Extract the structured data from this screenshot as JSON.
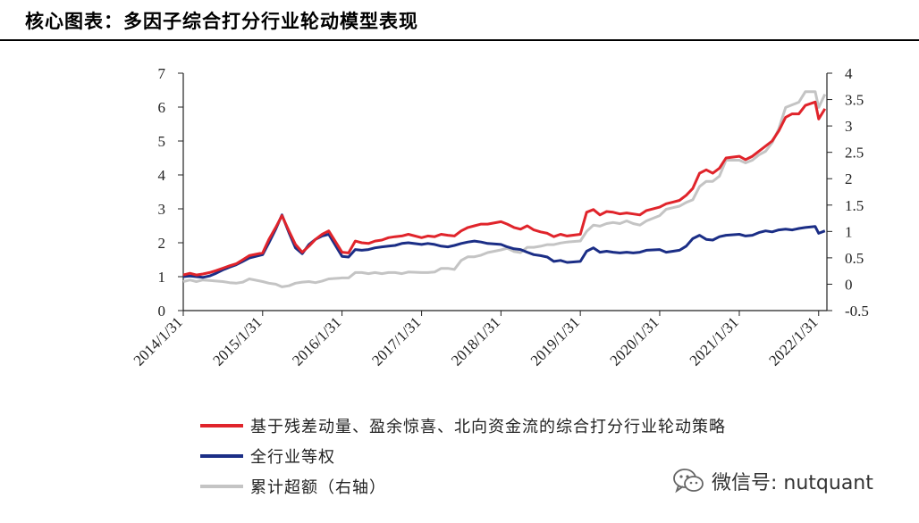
{
  "page": {
    "title": "核心图表：多因子综合打分行业轮动模型表现",
    "watermark_text": "微信号: nutquant",
    "watermark_icon": "wechat-icon"
  },
  "colors": {
    "strategy": "#E0242B",
    "equal_weight": "#1B2E86",
    "excess": "#C4C4C4"
  },
  "chart_data": {
    "type": "line",
    "title": "",
    "xlabel": "",
    "ylabel": "",
    "x_ticks": [
      "2014/1/31",
      "2015/1/31",
      "2016/1/31",
      "2017/1/31",
      "2018/1/31",
      "2019/1/31",
      "2020/1/31",
      "2021/1/31",
      "2022/1/31"
    ],
    "y_left": {
      "ticks": [
        "0",
        "1",
        "2",
        "3",
        "4",
        "5",
        "6",
        "7"
      ],
      "ylim": [
        0,
        7
      ]
    },
    "y_right": {
      "ticks": [
        "-0.5",
        "0",
        "0.5",
        "1",
        "1.5",
        "2",
        "2.5",
        "3",
        "3.5",
        "4"
      ],
      "ylim": [
        -0.5,
        4
      ]
    },
    "legend_position": "bottom",
    "grid": false,
    "series": [
      {
        "name": "基于残差动量、盈余惊喜、北向资金流的综合打分行业轮动策略",
        "axis": "left",
        "points": [
          [
            "2014-01-31",
            1.05
          ],
          [
            "2014-03-03",
            1.1
          ],
          [
            "2014-04-01",
            1.05
          ],
          [
            "2014-05-01",
            1.08
          ],
          [
            "2014-06-01",
            1.12
          ],
          [
            "2014-07-01",
            1.18
          ],
          [
            "2014-08-01",
            1.25
          ],
          [
            "2014-09-01",
            1.32
          ],
          [
            "2014-10-01",
            1.38
          ],
          [
            "2014-11-01",
            1.5
          ],
          [
            "2014-12-01",
            1.62
          ],
          [
            "2015-01-31",
            1.7
          ],
          [
            "2015-03-01",
            2.1
          ],
          [
            "2015-04-01",
            2.45
          ],
          [
            "2015-04-30",
            2.8
          ],
          [
            "2015-06-01",
            2.35
          ],
          [
            "2015-07-01",
            1.95
          ],
          [
            "2015-08-01",
            1.72
          ],
          [
            "2015-09-01",
            1.9
          ],
          [
            "2015-10-01",
            2.1
          ],
          [
            "2015-11-01",
            2.25
          ],
          [
            "2015-12-01",
            2.35
          ],
          [
            "2016-01-31",
            1.72
          ],
          [
            "2016-03-01",
            1.7
          ],
          [
            "2016-04-01",
            2.05
          ],
          [
            "2016-05-01",
            2.0
          ],
          [
            "2016-06-01",
            1.98
          ],
          [
            "2016-07-01",
            2.05
          ],
          [
            "2016-08-01",
            2.08
          ],
          [
            "2016-09-01",
            2.15
          ],
          [
            "2016-10-01",
            2.18
          ],
          [
            "2016-11-01",
            2.2
          ],
          [
            "2016-12-01",
            2.25
          ],
          [
            "2017-01-31",
            2.15
          ],
          [
            "2017-03-01",
            2.2
          ],
          [
            "2017-04-01",
            2.18
          ],
          [
            "2017-05-01",
            2.25
          ],
          [
            "2017-06-01",
            2.22
          ],
          [
            "2017-07-01",
            2.2
          ],
          [
            "2017-08-01",
            2.35
          ],
          [
            "2017-09-01",
            2.45
          ],
          [
            "2017-10-01",
            2.5
          ],
          [
            "2017-11-01",
            2.55
          ],
          [
            "2017-12-01",
            2.55
          ],
          [
            "2018-01-31",
            2.62
          ],
          [
            "2018-03-01",
            2.55
          ],
          [
            "2018-04-01",
            2.45
          ],
          [
            "2018-05-01",
            2.4
          ],
          [
            "2018-06-01",
            2.5
          ],
          [
            "2018-07-01",
            2.38
          ],
          [
            "2018-08-01",
            2.32
          ],
          [
            "2018-09-01",
            2.28
          ],
          [
            "2018-10-01",
            2.18
          ],
          [
            "2018-11-01",
            2.25
          ],
          [
            "2018-12-01",
            2.2
          ],
          [
            "2019-01-31",
            2.25
          ],
          [
            "2019-03-01",
            2.9
          ],
          [
            "2019-04-01",
            2.98
          ],
          [
            "2019-05-01",
            2.82
          ],
          [
            "2019-06-01",
            2.92
          ],
          [
            "2019-07-01",
            2.9
          ],
          [
            "2019-08-01",
            2.85
          ],
          [
            "2019-09-01",
            2.88
          ],
          [
            "2019-10-01",
            2.85
          ],
          [
            "2019-11-01",
            2.82
          ],
          [
            "2019-12-01",
            2.95
          ],
          [
            "2020-01-31",
            3.05
          ],
          [
            "2020-03-01",
            3.15
          ],
          [
            "2020-04-01",
            3.2
          ],
          [
            "2020-05-01",
            3.25
          ],
          [
            "2020-06-01",
            3.4
          ],
          [
            "2020-07-01",
            3.6
          ],
          [
            "2020-08-01",
            4.05
          ],
          [
            "2020-09-01",
            4.15
          ],
          [
            "2020-10-01",
            4.05
          ],
          [
            "2020-11-01",
            4.2
          ],
          [
            "2020-12-01",
            4.5
          ],
          [
            "2021-01-31",
            4.55
          ],
          [
            "2021-03-01",
            4.45
          ],
          [
            "2021-04-01",
            4.55
          ],
          [
            "2021-05-01",
            4.7
          ],
          [
            "2021-06-01",
            4.85
          ],
          [
            "2021-07-01",
            5.0
          ],
          [
            "2021-08-01",
            5.3
          ],
          [
            "2021-09-01",
            5.7
          ],
          [
            "2021-10-01",
            5.8
          ],
          [
            "2021-11-01",
            5.8
          ],
          [
            "2021-12-01",
            6.05
          ],
          [
            "2022-01-15",
            6.15
          ],
          [
            "2022-01-31",
            5.65
          ],
          [
            "2022-03-01",
            5.95
          ]
        ]
      },
      {
        "name": "全行业等权",
        "axis": "left",
        "points": [
          [
            "2014-01-31",
            1.0
          ],
          [
            "2014-03-03",
            1.02
          ],
          [
            "2014-04-01",
            1.0
          ],
          [
            "2014-05-01",
            0.98
          ],
          [
            "2014-06-01",
            1.02
          ],
          [
            "2014-07-01",
            1.1
          ],
          [
            "2014-08-01",
            1.2
          ],
          [
            "2014-09-01",
            1.28
          ],
          [
            "2014-10-01",
            1.35
          ],
          [
            "2014-11-01",
            1.45
          ],
          [
            "2014-12-01",
            1.55
          ],
          [
            "2015-01-31",
            1.65
          ],
          [
            "2015-03-01",
            2.0
          ],
          [
            "2015-04-01",
            2.4
          ],
          [
            "2015-04-30",
            2.82
          ],
          [
            "2015-06-01",
            2.3
          ],
          [
            "2015-07-01",
            1.85
          ],
          [
            "2015-08-01",
            1.68
          ],
          [
            "2015-09-01",
            1.95
          ],
          [
            "2015-10-01",
            2.1
          ],
          [
            "2015-11-01",
            2.2
          ],
          [
            "2015-12-01",
            2.25
          ],
          [
            "2016-01-31",
            1.6
          ],
          [
            "2016-03-01",
            1.58
          ],
          [
            "2016-04-01",
            1.8
          ],
          [
            "2016-05-01",
            1.78
          ],
          [
            "2016-06-01",
            1.8
          ],
          [
            "2016-07-01",
            1.85
          ],
          [
            "2016-08-01",
            1.88
          ],
          [
            "2016-09-01",
            1.9
          ],
          [
            "2016-10-01",
            1.92
          ],
          [
            "2016-11-01",
            1.98
          ],
          [
            "2016-12-01",
            2.0
          ],
          [
            "2017-01-31",
            1.95
          ],
          [
            "2017-03-01",
            1.98
          ],
          [
            "2017-04-01",
            1.95
          ],
          [
            "2017-05-01",
            1.9
          ],
          [
            "2017-06-01",
            1.88
          ],
          [
            "2017-07-01",
            1.92
          ],
          [
            "2017-08-01",
            1.98
          ],
          [
            "2017-09-01",
            2.02
          ],
          [
            "2017-10-01",
            2.05
          ],
          [
            "2017-11-01",
            2.02
          ],
          [
            "2017-12-01",
            1.98
          ],
          [
            "2018-01-31",
            1.95
          ],
          [
            "2018-03-01",
            1.88
          ],
          [
            "2018-04-01",
            1.82
          ],
          [
            "2018-05-01",
            1.8
          ],
          [
            "2018-06-01",
            1.72
          ],
          [
            "2018-07-01",
            1.65
          ],
          [
            "2018-08-01",
            1.62
          ],
          [
            "2018-09-01",
            1.58
          ],
          [
            "2018-10-01",
            1.45
          ],
          [
            "2018-11-01",
            1.48
          ],
          [
            "2018-12-01",
            1.42
          ],
          [
            "2019-01-31",
            1.45
          ],
          [
            "2019-03-01",
            1.75
          ],
          [
            "2019-04-01",
            1.85
          ],
          [
            "2019-05-01",
            1.72
          ],
          [
            "2019-06-01",
            1.75
          ],
          [
            "2019-07-01",
            1.72
          ],
          [
            "2019-08-01",
            1.7
          ],
          [
            "2019-09-01",
            1.72
          ],
          [
            "2019-10-01",
            1.7
          ],
          [
            "2019-11-01",
            1.72
          ],
          [
            "2019-12-01",
            1.78
          ],
          [
            "2020-01-31",
            1.8
          ],
          [
            "2020-03-01",
            1.72
          ],
          [
            "2020-04-01",
            1.75
          ],
          [
            "2020-05-01",
            1.78
          ],
          [
            "2020-06-01",
            1.9
          ],
          [
            "2020-07-01",
            2.12
          ],
          [
            "2020-08-01",
            2.22
          ],
          [
            "2020-09-01",
            2.1
          ],
          [
            "2020-10-01",
            2.08
          ],
          [
            "2020-11-01",
            2.18
          ],
          [
            "2020-12-01",
            2.22
          ],
          [
            "2021-01-31",
            2.25
          ],
          [
            "2021-03-01",
            2.2
          ],
          [
            "2021-04-01",
            2.22
          ],
          [
            "2021-05-01",
            2.3
          ],
          [
            "2021-06-01",
            2.35
          ],
          [
            "2021-07-01",
            2.32
          ],
          [
            "2021-08-01",
            2.38
          ],
          [
            "2021-09-01",
            2.4
          ],
          [
            "2021-10-01",
            2.38
          ],
          [
            "2021-11-01",
            2.42
          ],
          [
            "2021-12-01",
            2.45
          ],
          [
            "2022-01-15",
            2.48
          ],
          [
            "2022-01-31",
            2.28
          ],
          [
            "2022-03-01",
            2.35
          ]
        ]
      },
      {
        "name": "累计超额（右轴）",
        "axis": "right",
        "points": [
          [
            "2014-01-31",
            0.05
          ],
          [
            "2014-03-03",
            0.08
          ],
          [
            "2014-04-01",
            0.05
          ],
          [
            "2014-05-01",
            0.08
          ],
          [
            "2014-06-01",
            0.07
          ],
          [
            "2014-07-01",
            0.06
          ],
          [
            "2014-08-01",
            0.05
          ],
          [
            "2014-09-01",
            0.03
          ],
          [
            "2014-10-01",
            0.02
          ],
          [
            "2014-11-01",
            0.04
          ],
          [
            "2014-12-01",
            0.1
          ],
          [
            "2015-01-31",
            0.05
          ],
          [
            "2015-03-01",
            0.02
          ],
          [
            "2015-04-01",
            0.0
          ],
          [
            "2015-04-30",
            -0.05
          ],
          [
            "2015-06-01",
            -0.03
          ],
          [
            "2015-07-01",
            0.02
          ],
          [
            "2015-08-01",
            0.04
          ],
          [
            "2015-09-01",
            0.05
          ],
          [
            "2015-10-01",
            0.03
          ],
          [
            "2015-11-01",
            0.06
          ],
          [
            "2015-12-01",
            0.1
          ],
          [
            "2016-01-31",
            0.12
          ],
          [
            "2016-03-01",
            0.12
          ],
          [
            "2016-04-01",
            0.22
          ],
          [
            "2016-05-01",
            0.22
          ],
          [
            "2016-06-01",
            0.2
          ],
          [
            "2016-07-01",
            0.22
          ],
          [
            "2016-08-01",
            0.2
          ],
          [
            "2016-09-01",
            0.22
          ],
          [
            "2016-10-01",
            0.22
          ],
          [
            "2016-11-01",
            0.2
          ],
          [
            "2016-12-01",
            0.23
          ],
          [
            "2017-01-31",
            0.22
          ],
          [
            "2017-03-01",
            0.22
          ],
          [
            "2017-04-01",
            0.23
          ],
          [
            "2017-05-01",
            0.3
          ],
          [
            "2017-06-01",
            0.3
          ],
          [
            "2017-07-01",
            0.28
          ],
          [
            "2017-08-01",
            0.45
          ],
          [
            "2017-09-01",
            0.52
          ],
          [
            "2017-10-01",
            0.52
          ],
          [
            "2017-11-01",
            0.55
          ],
          [
            "2017-12-01",
            0.6
          ],
          [
            "2018-01-31",
            0.65
          ],
          [
            "2018-03-01",
            0.68
          ],
          [
            "2018-04-01",
            0.62
          ],
          [
            "2018-05-01",
            0.6
          ],
          [
            "2018-06-01",
            0.7
          ],
          [
            "2018-07-01",
            0.7
          ],
          [
            "2018-08-01",
            0.72
          ],
          [
            "2018-09-01",
            0.75
          ],
          [
            "2018-10-01",
            0.75
          ],
          [
            "2018-11-01",
            0.78
          ],
          [
            "2018-12-01",
            0.8
          ],
          [
            "2019-01-31",
            0.82
          ],
          [
            "2019-03-01",
            1.0
          ],
          [
            "2019-04-01",
            1.12
          ],
          [
            "2019-05-01",
            1.1
          ],
          [
            "2019-06-01",
            1.15
          ],
          [
            "2019-07-01",
            1.17
          ],
          [
            "2019-08-01",
            1.15
          ],
          [
            "2019-09-01",
            1.2
          ],
          [
            "2019-10-01",
            1.15
          ],
          [
            "2019-11-01",
            1.12
          ],
          [
            "2019-12-01",
            1.2
          ],
          [
            "2020-01-31",
            1.3
          ],
          [
            "2020-03-01",
            1.42
          ],
          [
            "2020-04-01",
            1.45
          ],
          [
            "2020-05-01",
            1.48
          ],
          [
            "2020-06-01",
            1.55
          ],
          [
            "2020-07-01",
            1.6
          ],
          [
            "2020-08-01",
            1.85
          ],
          [
            "2020-09-01",
            1.95
          ],
          [
            "2020-10-01",
            1.95
          ],
          [
            "2020-11-01",
            2.05
          ],
          [
            "2020-12-01",
            2.35
          ],
          [
            "2021-01-31",
            2.35
          ],
          [
            "2021-03-01",
            2.3
          ],
          [
            "2021-04-01",
            2.35
          ],
          [
            "2021-05-01",
            2.45
          ],
          [
            "2021-06-01",
            2.52
          ],
          [
            "2021-07-01",
            2.68
          ],
          [
            "2021-08-01",
            2.95
          ],
          [
            "2021-09-01",
            3.35
          ],
          [
            "2021-10-01",
            3.4
          ],
          [
            "2021-11-01",
            3.45
          ],
          [
            "2021-12-01",
            3.65
          ],
          [
            "2022-01-15",
            3.65
          ],
          [
            "2022-01-31",
            3.35
          ],
          [
            "2022-03-01",
            3.6
          ]
        ]
      }
    ]
  }
}
